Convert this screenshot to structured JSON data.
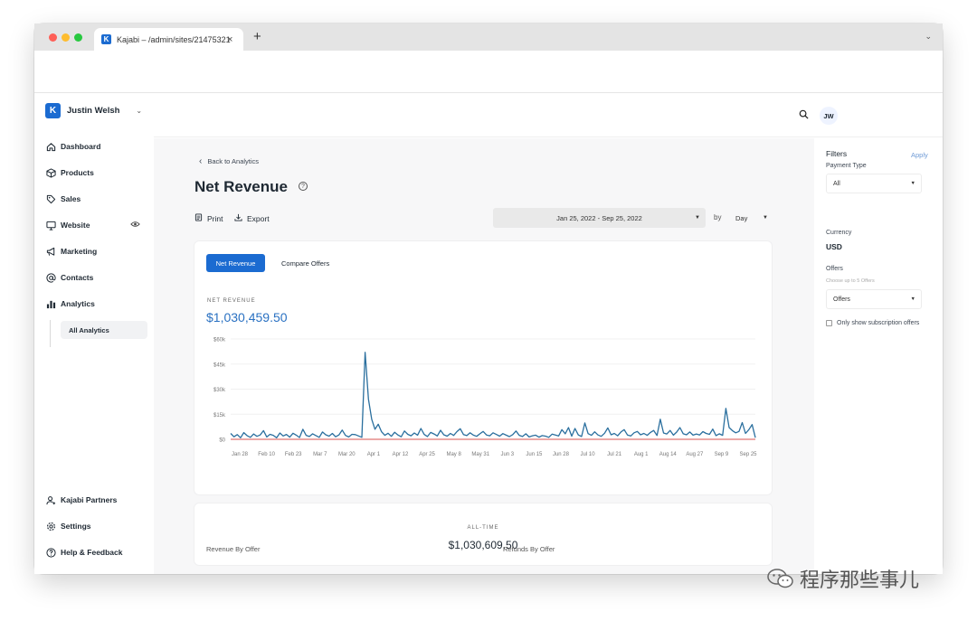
{
  "browser": {
    "tab_title": "Kajabi – /admin/sites/21475321",
    "tab_favicon": "K",
    "new_tab": "+",
    "close": "×",
    "menu": "⌄"
  },
  "account": {
    "logo": "K",
    "name": "Justin Welsh"
  },
  "sidebar": {
    "items": [
      {
        "label": "Dashboard",
        "icon": "home-icon"
      },
      {
        "label": "Products",
        "icon": "box-icon"
      },
      {
        "label": "Sales",
        "icon": "tag-icon"
      },
      {
        "label": "Website",
        "icon": "monitor-icon"
      },
      {
        "label": "Marketing",
        "icon": "megaphone-icon"
      },
      {
        "label": "Contacts",
        "icon": "at-icon"
      },
      {
        "label": "Analytics",
        "icon": "bar-chart-icon"
      }
    ],
    "sub_item": "All Analytics",
    "bottom_items": [
      {
        "label": "Kajabi Partners",
        "icon": "user-plus-icon"
      },
      {
        "label": "Settings",
        "icon": "gear-icon"
      },
      {
        "label": "Help & Feedback",
        "icon": "question-icon"
      }
    ]
  },
  "header": {
    "avatar_initials": "JW"
  },
  "page": {
    "back_label": "Back to Analytics",
    "title": "Net Revenue",
    "print_label": "Print",
    "export_label": "Export",
    "date_range": "Jan 25, 2022 - Sep 25, 2022",
    "by_label": "by",
    "granularity": "Day",
    "tab_net_revenue": "Net Revenue",
    "tab_compare_offers": "Compare Offers",
    "metric_label": "NET REVENUE",
    "metric_value": "$1,030,459.50",
    "alltime_label": "ALL-TIME",
    "alltime_value": "$1,030,609.50",
    "bottom_left_heading": "Revenue By Offer",
    "bottom_right_heading": "Refunds By Offer"
  },
  "filters": {
    "title": "Filters",
    "apply_label": "Apply",
    "payment_type_label": "Payment Type",
    "payment_type_value": "All",
    "currency_label": "Currency",
    "currency_value": "USD",
    "offers_label": "Offers",
    "offers_hint": "Choose up to 5 Offers",
    "offers_placeholder": "Offers",
    "subscription_checkbox_label": "Only show subscription offers"
  },
  "watermark": {
    "text": "程序那些事儿"
  },
  "colors": {
    "accent": "#1b6bd1",
    "revenue_line": "#2a6f9e",
    "refund_line": "#d9534f",
    "metric_value": "#2a71c2"
  },
  "chart_data": {
    "type": "line",
    "ylim": [
      0,
      60000
    ],
    "y_ticks": [
      "$60k",
      "$45k",
      "$30k",
      "$15k",
      "$0"
    ],
    "x_ticks": [
      "Jan 28",
      "Feb 10",
      "Feb 23",
      "Mar 7",
      "Mar 20",
      "Apr 1",
      "Apr 12",
      "Apr 25",
      "May 8",
      "May 31",
      "Jun 3",
      "Jun 15",
      "Jun 28",
      "Jul 10",
      "Jul 21",
      "Aug 1",
      "Aug 14",
      "Aug 27",
      "Sep 9",
      "Sep 25"
    ],
    "series": [
      {
        "name": "Net Revenue",
        "values": [
          3500,
          1500,
          2800,
          900,
          4000,
          2200,
          1200,
          3200,
          1800,
          2600,
          5200,
          1400,
          3000,
          2400,
          900,
          3800,
          2000,
          2900,
          1300,
          3600,
          2500,
          1100,
          6000,
          2400,
          1700,
          3300,
          2200,
          1200,
          4400,
          2700,
          1900,
          3500,
          1500,
          2600,
          5500,
          2300,
          1400,
          3000,
          2800,
          2000,
          1200,
          52000,
          24000,
          12000,
          6000,
          9000,
          4500,
          2400,
          3600,
          1800,
          4200,
          2600,
          1500,
          5000,
          3000,
          2100,
          3800,
          2500,
          6500,
          2900,
          1700,
          4100,
          3200,
          2000,
          5400,
          2700,
          1900,
          3500,
          2300,
          4600,
          6300,
          2800,
          2200,
          3900,
          2500,
          1800,
          3300,
          4700,
          2600,
          2100,
          3900,
          2900,
          1900,
          3400,
          2500,
          1600,
          2800,
          5000,
          2400,
          1700,
          3300,
          1400,
          2100,
          2500,
          1300,
          2200,
          1900,
          1200,
          3100,
          2600,
          2000,
          5800,
          3300,
          7000,
          1900,
          6500,
          2600,
          1700,
          9800,
          3400,
          2400,
          4500,
          2600,
          1800,
          3600,
          6800,
          2700,
          3500,
          2100,
          4400,
          5800,
          2600,
          2000,
          3900,
          4700,
          2700,
          3500,
          2400,
          4100,
          5300,
          2300,
          12000,
          3800,
          3200,
          5300,
          2500,
          4300,
          7000,
          3300,
          2700,
          4400,
          2500,
          3200,
          2600,
          4600,
          3500,
          3000,
          6100,
          2200,
          3300,
          2400,
          18500,
          7000,
          5200,
          3900,
          4700,
          10000,
          3500,
          5800,
          8800,
          1000
        ],
        "color": "#2a6f9e"
      },
      {
        "name": "Refunds",
        "values": [
          0,
          0,
          0,
          0,
          0,
          0,
          0,
          0,
          0,
          0,
          0,
          0,
          0,
          0,
          0,
          0,
          0,
          0,
          0,
          0,
          0,
          0,
          0,
          0,
          0,
          0,
          0,
          0,
          0,
          0,
          0,
          0,
          0,
          0,
          0,
          0,
          0,
          0,
          0,
          0,
          0,
          0,
          0,
          0,
          0,
          0,
          0,
          0,
          0,
          0,
          0,
          0,
          0,
          0,
          0,
          0,
          0,
          0,
          0,
          0,
          0,
          0,
          0,
          0,
          0,
          0,
          0,
          0,
          0,
          0,
          0,
          0,
          0,
          0,
          0,
          0,
          0,
          0,
          0,
          0,
          0,
          0,
          0,
          0,
          0,
          0,
          0,
          0,
          0,
          0,
          0,
          0,
          0,
          0,
          0,
          0,
          0,
          0,
          0,
          0,
          0,
          0,
          0,
          0,
          0,
          0,
          0,
          0,
          0,
          0,
          0,
          0,
          0,
          0,
          0,
          0,
          0,
          0,
          0,
          0,
          0,
          0,
          0,
          0,
          0,
          0,
          0,
          0,
          0,
          0,
          0,
          0,
          0,
          0,
          0,
          0,
          0,
          0,
          0,
          0,
          0,
          0,
          0,
          0,
          0,
          0,
          0,
          0,
          0,
          0,
          0,
          0,
          0,
          0,
          0,
          0,
          0,
          0,
          0,
          0,
          0
        ],
        "color": "#d9534f"
      }
    ]
  }
}
